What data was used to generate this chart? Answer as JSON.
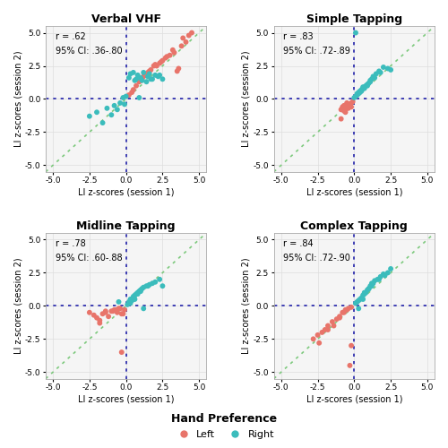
{
  "panels": [
    {
      "title": "Verbal VHF",
      "r_text": "r = .62",
      "ci_text": "95% CI: .36-.80",
      "left_color": "#E8746A",
      "right_color": "#3BBCBC",
      "left_x": [
        0.2,
        0.5,
        0.7,
        0.9,
        1.1,
        1.3,
        1.5,
        1.7,
        1.9,
        2.1,
        2.3,
        2.5,
        2.7,
        3.0,
        3.3,
        3.6,
        3.8,
        4.1,
        4.5,
        1.0,
        1.2,
        1.6,
        2.0,
        2.4,
        2.8,
        3.2,
        3.5,
        3.9,
        4.3,
        0.4
      ],
      "left_y": [
        0.3,
        0.7,
        1.0,
        1.3,
        1.5,
        1.8,
        2.0,
        2.2,
        2.5,
        2.5,
        2.7,
        2.9,
        3.1,
        3.3,
        3.5,
        2.3,
        4.0,
        4.3,
        5.0,
        1.4,
        1.7,
        2.1,
        2.6,
        2.8,
        3.2,
        3.7,
        2.1,
        4.6,
        4.8,
        0.5
      ],
      "right_x": [
        -2.5,
        -2.0,
        -1.6,
        -1.3,
        -0.8,
        -0.4,
        0.2,
        0.5,
        0.7,
        0.8,
        1.0,
        1.2,
        1.5,
        1.8,
        2.0,
        2.5,
        -0.2,
        0.0,
        0.3,
        1.1,
        1.4,
        1.7,
        2.2,
        -0.6,
        -0.1,
        0.6,
        0.9,
        1.6,
        2.3,
        -1.0
      ],
      "right_y": [
        -1.3,
        -1.0,
        -1.8,
        -0.7,
        -0.5,
        -0.3,
        1.6,
        2.0,
        1.5,
        1.8,
        1.6,
        2.0,
        1.7,
        1.5,
        1.8,
        1.5,
        0.1,
        0.2,
        1.9,
        1.4,
        1.3,
        1.5,
        1.7,
        -0.8,
        -0.4,
        1.4,
        0.1,
        1.9,
        1.8,
        -1.2
      ]
    },
    {
      "title": "Simple Tapping",
      "r_text": "r = .83",
      "ci_text": "95% CI: .72-.89",
      "left_color": "#E8746A",
      "right_color": "#3BBCBC",
      "left_x": [
        -0.9,
        -0.8,
        -0.7,
        -0.6,
        -0.5,
        -0.4,
        -0.3,
        -0.2,
        -0.1,
        -0.9,
        -0.7,
        -0.6,
        -0.5,
        -0.4,
        -0.3,
        -0.2,
        -0.8,
        -0.6,
        -0.5,
        -0.4
      ],
      "left_y": [
        -0.8,
        -0.6,
        -0.5,
        -1.0,
        -0.4,
        -0.7,
        -0.5,
        -0.3,
        -0.2,
        -1.5,
        -0.9,
        -0.8,
        -0.6,
        -0.5,
        -0.4,
        -0.6,
        -0.7,
        -0.5,
        -0.3,
        -0.4
      ],
      "right_x": [
        0.0,
        0.1,
        0.2,
        0.3,
        0.4,
        0.5,
        0.6,
        0.7,
        0.8,
        0.9,
        1.0,
        1.1,
        1.2,
        1.3,
        1.5,
        1.7,
        2.0,
        2.3,
        2.5,
        0.3,
        0.5,
        0.7,
        0.9,
        1.1,
        1.4,
        1.8,
        0.2,
        0.6,
        0.4,
        0.1
      ],
      "right_y": [
        0.1,
        0.2,
        0.3,
        0.4,
        0.5,
        0.6,
        0.8,
        0.9,
        1.0,
        1.1,
        1.2,
        1.3,
        1.5,
        1.7,
        1.9,
        2.1,
        2.4,
        2.3,
        2.2,
        0.5,
        0.7,
        0.8,
        1.0,
        1.4,
        1.6,
        2.0,
        0.4,
        0.9,
        0.6,
        5.0
      ]
    },
    {
      "title": "Midline Tapping",
      "r_text": "r = .78",
      "ci_text": "95% CI: .60-.88",
      "left_color": "#E8746A",
      "right_color": "#3BBCBC",
      "left_x": [
        -2.5,
        -2.2,
        -2.0,
        -1.8,
        -1.6,
        -1.4,
        -1.2,
        -1.0,
        -0.8,
        -0.6,
        -0.4,
        -0.2,
        -0.1,
        -1.8,
        -1.4,
        -0.9,
        -0.7,
        -0.5,
        -0.3,
        -0.3
      ],
      "left_y": [
        -0.5,
        -0.7,
        -0.9,
        -1.1,
        -0.6,
        -0.4,
        -0.8,
        -0.4,
        -0.3,
        -0.5,
        -0.2,
        -0.6,
        -0.3,
        -1.3,
        -0.5,
        -0.4,
        -0.3,
        -0.2,
        -0.6,
        -3.5
      ],
      "right_x": [
        0.1,
        0.2,
        0.3,
        0.4,
        0.5,
        0.6,
        0.7,
        0.8,
        0.9,
        1.0,
        1.1,
        1.2,
        1.4,
        1.6,
        1.8,
        2.0,
        2.3,
        2.5,
        -0.5,
        0.5,
        0.8,
        1.0,
        1.5,
        1.2,
        0.3,
        0.6
      ],
      "right_y": [
        0.1,
        0.3,
        0.5,
        0.4,
        0.7,
        0.8,
        0.9,
        1.0,
        1.1,
        1.2,
        1.3,
        1.4,
        1.5,
        1.6,
        1.7,
        1.8,
        2.0,
        1.5,
        0.3,
        0.6,
        0.9,
        1.1,
        1.5,
        -0.2,
        0.2,
        0.5
      ]
    },
    {
      "title": "Complex Tapping",
      "r_text": "r = .84",
      "ci_text": "95% CI: .72-.90",
      "left_color": "#E8746A",
      "right_color": "#3BBCBC",
      "left_x": [
        -2.8,
        -2.5,
        -2.2,
        -2.0,
        -1.8,
        -1.5,
        -1.2,
        -1.0,
        -0.8,
        -0.6,
        -0.4,
        -0.2,
        -2.4,
        -1.8,
        -1.4,
        -1.0,
        -0.7,
        -0.5,
        -0.3,
        -0.2
      ],
      "left_y": [
        -2.5,
        -2.2,
        -2.0,
        -1.8,
        -1.5,
        -1.2,
        -1.0,
        -0.8,
        -0.5,
        -0.3,
        -0.2,
        -0.1,
        -2.8,
        -1.8,
        -1.5,
        -0.9,
        -0.5,
        -0.3,
        -4.5,
        -3.0
      ],
      "right_x": [
        0.1,
        0.2,
        0.3,
        0.5,
        0.6,
        0.7,
        0.8,
        0.9,
        1.0,
        1.1,
        1.2,
        1.4,
        1.6,
        1.8,
        2.0,
        2.3,
        2.5,
        0.4,
        0.7,
        1.0,
        1.3,
        1.7,
        2.1,
        0.3,
        0.6,
        1.2
      ],
      "right_y": [
        0.2,
        0.3,
        0.4,
        0.6,
        0.8,
        1.0,
        1.0,
        1.2,
        1.3,
        1.5,
        1.7,
        1.9,
        2.0,
        2.2,
        2.4,
        2.5,
        2.8,
        0.5,
        0.9,
        1.3,
        1.7,
        2.0,
        2.3,
        -0.2,
        0.5,
        1.5
      ]
    }
  ],
  "xlim": [
    -5.5,
    5.5
  ],
  "ylim": [
    -5.5,
    5.5
  ],
  "xticks": [
    -5.0,
    -2.5,
    0.0,
    2.5,
    5.0
  ],
  "yticks": [
    -5.0,
    -2.5,
    0.0,
    2.5,
    5.0
  ],
  "xticklabels": [
    "-5.0",
    "-2.5",
    "0.0",
    "2.5",
    "5.0"
  ],
  "yticklabels": [
    "-5.0",
    "-2.5",
    "0.0",
    "2.5",
    "5.0"
  ],
  "xlabel": "LI z-scores (session 1)",
  "ylabel": "LI z-scores (session 2)",
  "diag_color": "#7DC97D",
  "hv_line_color": "#2222AA",
  "bg_color": "#FFFFFF",
  "panel_bg": "#F5F5F5",
  "grid_color": "#DDDDDD",
  "dot_size": 18,
  "legend_label_left": "Left",
  "legend_label_right": "Right",
  "legend_title": "Hand Preference",
  "title_fontsize": 9,
  "label_fontsize": 7,
  "tick_fontsize": 6.5,
  "annot_fontsize": 7
}
